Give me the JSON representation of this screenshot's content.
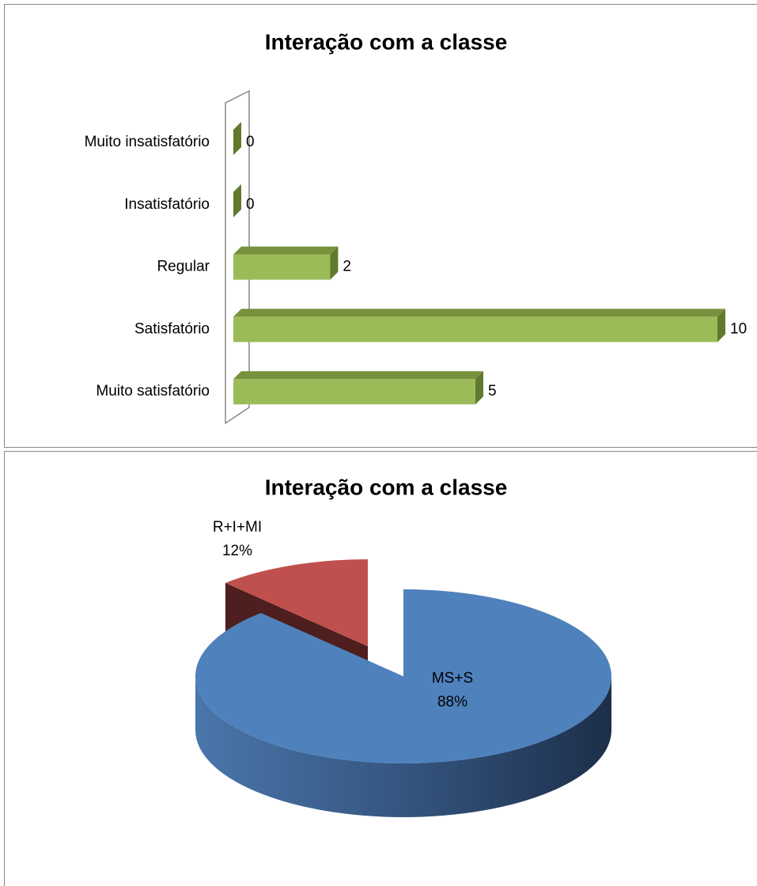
{
  "chart_data": [
    {
      "type": "bar",
      "orientation": "horizontal",
      "title": "Interação com a classe",
      "categories": [
        "Muito insatisfatório",
        "Insatisfatório",
        "Regular",
        "Satisfatório",
        "Muito satisfatório"
      ],
      "values": [
        0,
        0,
        2,
        10,
        5
      ],
      "color": "#9bbb59"
    },
    {
      "type": "pie",
      "title": "Interação com a classe",
      "categories": [
        "R+I+MI",
        "MS+S"
      ],
      "values": [
        12,
        88
      ],
      "value_labels": [
        "12%",
        "88%"
      ],
      "colors": [
        "#c0504d",
        "#4f81bd"
      ],
      "exploded": [
        "R+I+MI"
      ]
    }
  ]
}
